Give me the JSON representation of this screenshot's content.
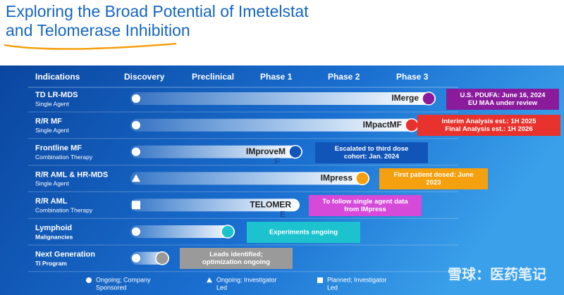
{
  "header": {
    "title": [
      "Exploring the Broad Potential of Imetelstat",
      "and Telomerase Inhibition"
    ]
  },
  "table": {
    "columns": [
      "Indications",
      "Discovery",
      "Preclinical",
      "Phase 1",
      "Phase 2",
      "Phase 3"
    ],
    "rows": [
      {
        "indication": "TD LR-MDS",
        "detail": "Single Agent",
        "marker": "circle",
        "program": [
          "IMerge"
        ],
        "color": "#8a1c9c",
        "status": [
          "U.S. PDUFA: June 16, 2024",
          "EU MAA under review"
        ]
      },
      {
        "indication": "R/R MF",
        "detail": "Single Agent",
        "marker": "circle",
        "program": [
          "IMpactMF"
        ],
        "color": "#e8322d",
        "status": [
          "Interim Analysis est.: 1H 2025",
          "Final Analysis est.: 1H 2026"
        ]
      },
      {
        "indication": "Frontline MF",
        "detail": "Combination Therapy",
        "marker": "circle",
        "program": [
          "IMproveM",
          "F"
        ],
        "color": "#1155b8",
        "status": [
          "Escalated to third dose",
          "cohort: Jan. 2024"
        ]
      },
      {
        "indication": "R/R AML & HR-MDS",
        "detail": "Single Agent",
        "marker": "triangle",
        "program": [
          "IMpress"
        ],
        "color": "#f5a00f",
        "status": [
          "First patient dosed: June",
          "2023"
        ]
      },
      {
        "indication": "R/R AML",
        "detail": "Combination Therapy",
        "marker": "square",
        "program": [
          "TELOMER",
          "E"
        ],
        "color": "#d54ad9",
        "status": [
          "To follow single agent data",
          "from IMpress"
        ]
      },
      {
        "indication": "Lymphoid",
        "detail": "Malignancies",
        "marker": "circle",
        "program": [],
        "color": "#1cc3cf",
        "status": [
          "Experiments ongoing"
        ]
      },
      {
        "indication": "Next Generation",
        "detail": "TI Program",
        "marker": "circle",
        "program": [],
        "color": "#9a9a9a",
        "status": [
          "Leads identified;",
          "optimization ongoing"
        ]
      }
    ]
  },
  "legend": [
    {
      "marker": "circle",
      "label": [
        "Ongoing; Company",
        "Sponsored"
      ]
    },
    {
      "marker": "triangle",
      "label": [
        "Ongoing; Investigator",
        "Led"
      ]
    },
    {
      "marker": "square",
      "label": [
        "Planned; Investigator",
        "Led"
      ]
    }
  ],
  "watermark": "雪球：医药笔记"
}
